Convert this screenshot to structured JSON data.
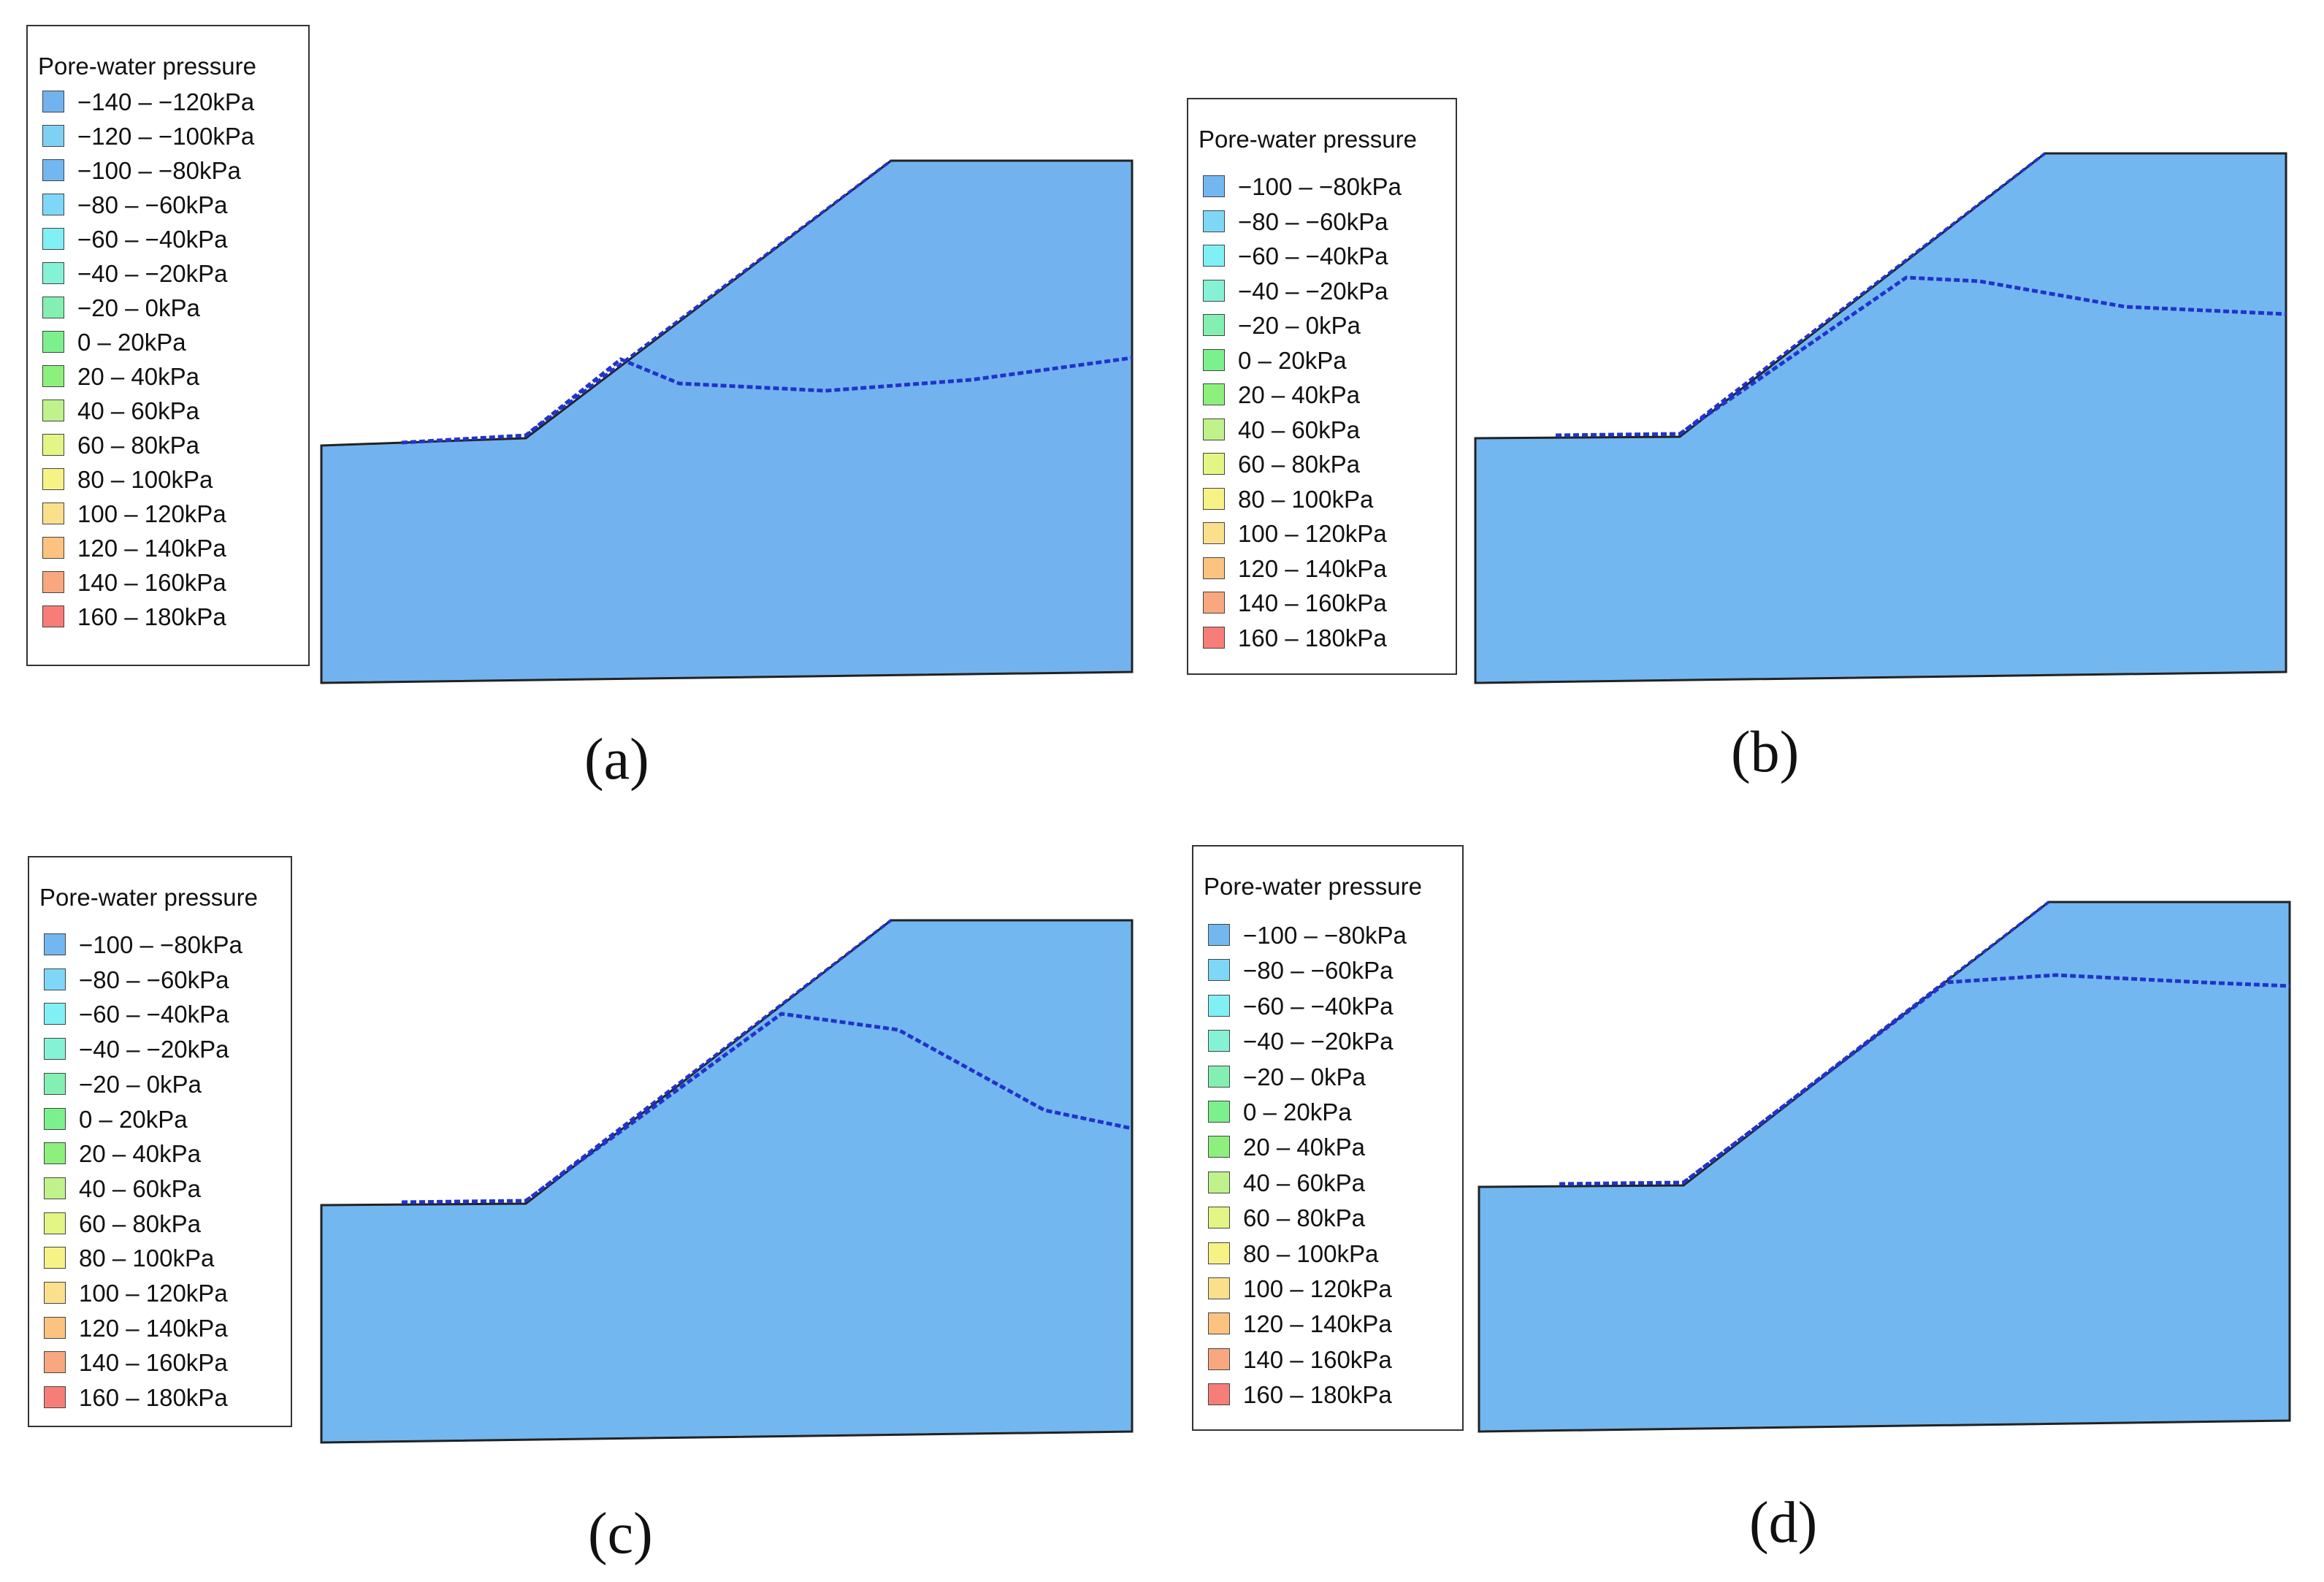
{
  "legend_title": "Pore-water pressure",
  "colors": {
    "-140 – -120kPa": "#72b3ef",
    "-120 – -100kPa": "#7fd1f3",
    "-100 – -80kPa": "#72b7f0",
    "-80 – -60kPa": "#7fd7f8",
    "-60 – -40kPa": "#81f0f4",
    "-40 – -20kPa": "#85f2d6",
    "-20 – 0kPa": "#83f0b2",
    "0 – 20kPa": "#7cf08c",
    "20 – 40kPa": "#8ef07c",
    "40 – 60kPa": "#bff28a",
    "60 – 80kPa": "#e3f584",
    "80 – 100kPa": "#f6f286",
    "100 – 120kPa": "#fbe08c",
    "120 – 140kPa": "#fbc37f",
    "140 – 160kPa": "#f8a77e",
    "160 – 180kPa": "#f67d78",
    "outline": "#222222",
    "water_table": "#2233cc"
  },
  "chart_data": [
    {
      "type": "contour",
      "panel": "(a)",
      "title": "Pore-water pressure",
      "legend": [
        "−140 – −120kPa",
        "−120 – −100kPa",
        "−100 – −80kPa",
        "−80 – −60kPa",
        "−60 – −40kPa",
        "−40 – −20kPa",
        "−20 – 0kPa",
        "0 – 20kPa",
        "20 – 40kPa",
        "40 – 60kPa",
        "60 – 80kPa",
        "80 – 100kPa",
        "100 – 120kPa",
        "120 – 140kPa",
        "140 – 160kPa",
        "160 – 180kPa"
      ],
      "legend_keys": [
        "-140 – -120kPa",
        "-120 – -100kPa",
        "-100 – -80kPa",
        "-80 – -60kPa",
        "-60 – -40kPa",
        "-40 – -20kPa",
        "-20 – 0kPa",
        "0 – 20kPa",
        "20 – 40kPa",
        "40 – 60kPa",
        "60 – 80kPa",
        "80 – 100kPa",
        "100 – 120kPa",
        "120 – 140kPa",
        "140 – 160kPa",
        "160 – 180kPa"
      ],
      "pressure_range_kpa": [
        -140,
        180
      ],
      "water_table": "deep, roughly horizontal beneath crest"
    },
    {
      "type": "contour",
      "panel": "(b)",
      "title": "Pore-water pressure",
      "legend": [
        "−100 – −80kPa",
        "−80 – −60kPa",
        "−60 – −40kPa",
        "−40 – −20kPa",
        "−20 – 0kPa",
        "0 – 20kPa",
        "20 – 40kPa",
        "40 – 60kPa",
        "60 – 80kPa",
        "80 – 100kPa",
        "100 – 120kPa",
        "120 – 140kPa",
        "140 – 160kPa",
        "160 – 180kPa"
      ],
      "legend_keys": [
        "-100 – -80kPa",
        "-80 – -60kPa",
        "-60 – -40kPa",
        "-40 – -20kPa",
        "-20 – 0kPa",
        "0 – 20kPa",
        "20 – 40kPa",
        "40 – 60kPa",
        "60 – 80kPa",
        "80 – 100kPa",
        "100 – 120kPa",
        "120 – 140kPa",
        "140 – 160kPa",
        "160 – 180kPa"
      ],
      "pressure_range_kpa": [
        -100,
        180
      ],
      "water_table": "raised, near crest"
    },
    {
      "type": "contour",
      "panel": "(c)",
      "title": "Pore-water pressure",
      "legend": [
        "−100 – −80kPa",
        "−80 – −60kPa",
        "−60 – −40kPa",
        "−40 – −20kPa",
        "−20 – 0kPa",
        "0 – 20kPa",
        "20 – 40kPa",
        "40 – 60kPa",
        "60 – 80kPa",
        "80 – 100kPa",
        "100 – 120kPa",
        "120 – 140kPa",
        "140 – 160kPa",
        "160 – 180kPa"
      ],
      "legend_keys": [
        "-100 – -80kPa",
        "-80 – -60kPa",
        "-60 – -40kPa",
        "-40 – -20kPa",
        "-20 – 0kPa",
        "0 – 20kPa",
        "20 – 40kPa",
        "40 – 60kPa",
        "60 – 80kPa",
        "80 – 100kPa",
        "100 – 120kPa",
        "120 – 140kPa",
        "140 – 160kPa",
        "160 – 180kPa"
      ],
      "pressure_range_kpa": [
        -100,
        180
      ],
      "water_table": "falling from slope crest toward right boundary"
    },
    {
      "type": "contour",
      "panel": "(d)",
      "title": "Pore-water pressure",
      "legend": [
        "−100 – −80kPa",
        "−80 – −60kPa",
        "−60 – −40kPa",
        "−40 – −20kPa",
        "−20 – 0kPa",
        "0 – 20kPa",
        "20 – 40kPa",
        "40 – 60kPa",
        "60 – 80kPa",
        "80 – 100kPa",
        "100 – 120kPa",
        "120 – 140kPa",
        "140 – 160kPa",
        "160 – 180kPa"
      ],
      "legend_keys": [
        "-100 – -80kPa",
        "-80 – -60kPa",
        "-60 – -40kPa",
        "-40 – -20kPa",
        "-20 – 0kPa",
        "0 – 20kPa",
        "20 – 40kPa",
        "40 – 60kPa",
        "60 – 80kPa",
        "80 – 100kPa",
        "100 – 120kPa",
        "120 – 140kPa",
        "140 – 160kPa",
        "160 – 180kPa"
      ],
      "pressure_range_kpa": [
        -100,
        180
      ],
      "water_table": "near crest, slightly lowered"
    }
  ]
}
